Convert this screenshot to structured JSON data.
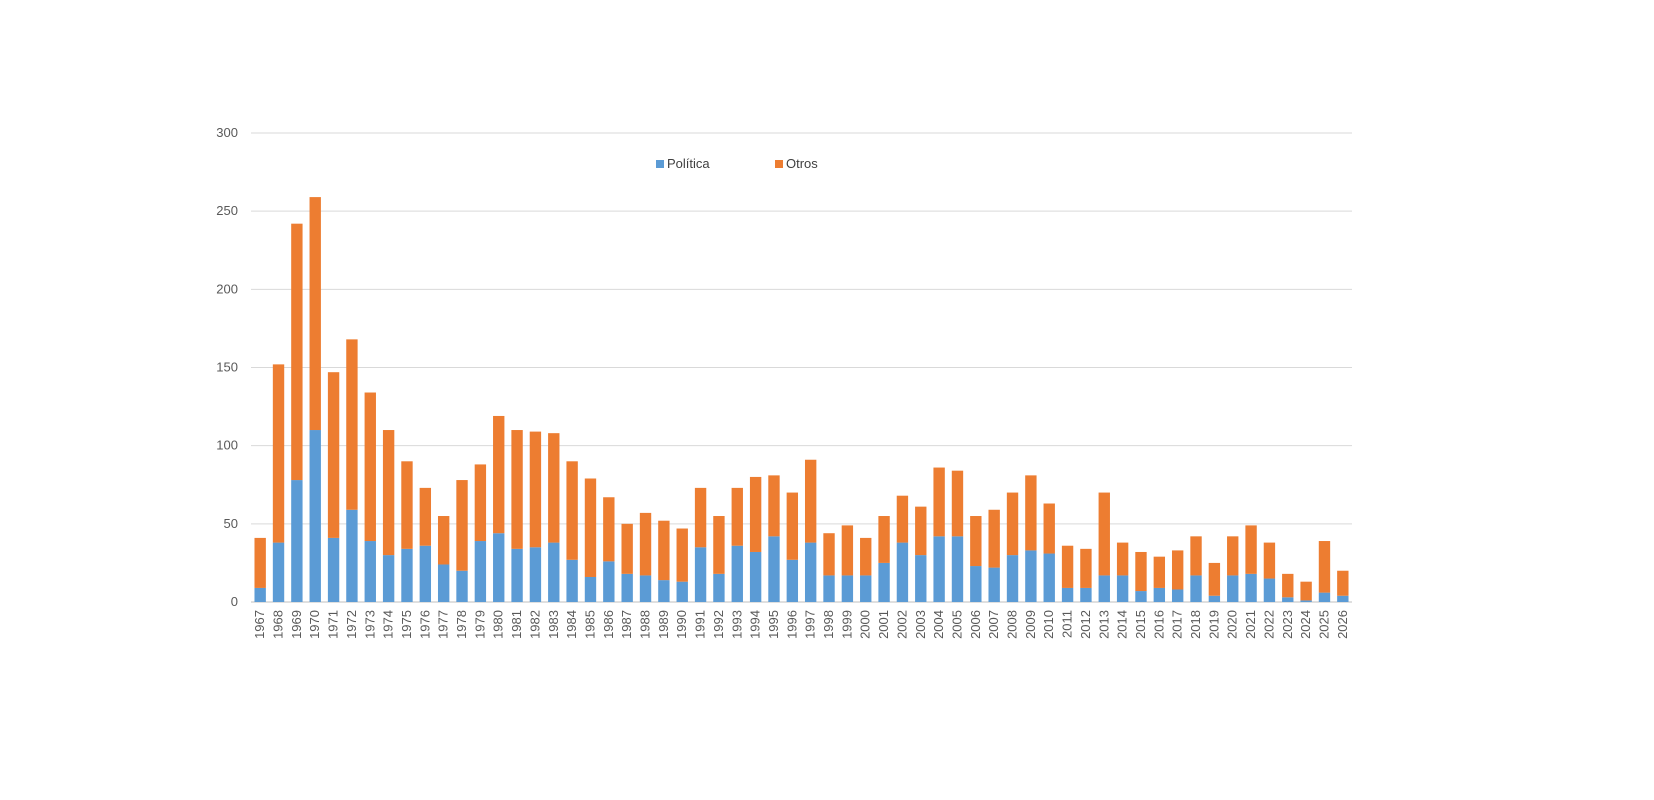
{
  "chart_data": {
    "type": "bar",
    "stacked": true,
    "title": "",
    "xlabel": "",
    "ylabel": "",
    "ylim": [
      0,
      300
    ],
    "yticks": [
      0,
      50,
      100,
      150,
      200,
      250,
      300
    ],
    "grid": "horizontal",
    "legend_position": "top-center",
    "categories": [
      "1967",
      "1968",
      "1969",
      "1970",
      "1971",
      "1972",
      "1973",
      "1974",
      "1975",
      "1976",
      "1977",
      "1978",
      "1979",
      "1980",
      "1981",
      "1982",
      "1983",
      "1984",
      "1985",
      "1986",
      "1987",
      "1988",
      "1989",
      "1990",
      "1991",
      "1992",
      "1993",
      "1994",
      "1995",
      "1996",
      "1997",
      "1998",
      "1999",
      "2000",
      "2001",
      "2002",
      "2003",
      "2004",
      "2005",
      "2006",
      "2007",
      "2008",
      "2009",
      "2010",
      "2011",
      "2012",
      "2013",
      "2014",
      "2015",
      "2016",
      "2017",
      "2018",
      "2019",
      "2020",
      "2021",
      "2022",
      "2023",
      "2024",
      "2025",
      "2026"
    ],
    "series": [
      {
        "name": "Política",
        "color": "#5b9bd5",
        "values": [
          9,
          38,
          78,
          110,
          41,
          59,
          39,
          30,
          34,
          36,
          24,
          20,
          39,
          44,
          34,
          35,
          38,
          27,
          16,
          26,
          18,
          17,
          14,
          13,
          35,
          18,
          36,
          32,
          42,
          27,
          38,
          17,
          17,
          17,
          25,
          38,
          30,
          42,
          42,
          23,
          22,
          30,
          33,
          31,
          9,
          9,
          17,
          17,
          7,
          9,
          8,
          17,
          4,
          17,
          18,
          15,
          3,
          1,
          6,
          4
        ]
      },
      {
        "name": "Otros",
        "color": "#ed7d31",
        "values": [
          32,
          114,
          164,
          149,
          106,
          109,
          95,
          80,
          56,
          37,
          31,
          58,
          49,
          75,
          76,
          74,
          70,
          63,
          63,
          41,
          32,
          40,
          38,
          34,
          38,
          37,
          37,
          48,
          39,
          43,
          53,
          27,
          32,
          24,
          30,
          30,
          31,
          44,
          42,
          32,
          37,
          40,
          48,
          32,
          27,
          25,
          53,
          21,
          25,
          20,
          25,
          25,
          21,
          25,
          31,
          23,
          15,
          12,
          33,
          16
        ]
      }
    ]
  }
}
